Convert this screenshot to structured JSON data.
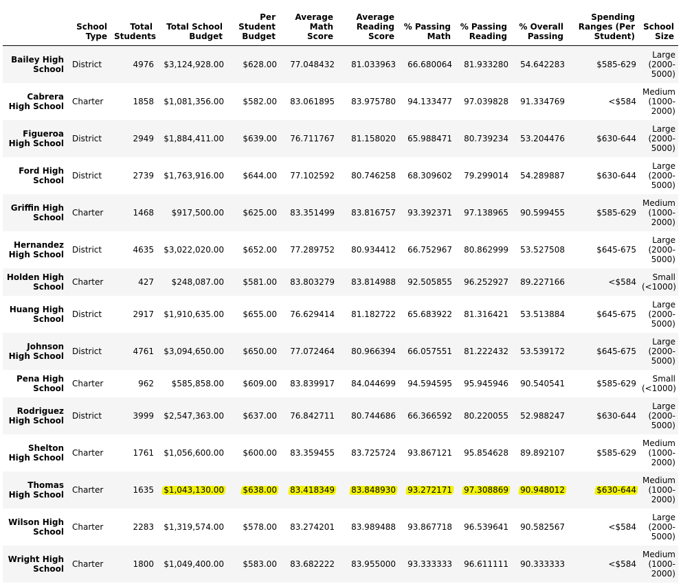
{
  "headers": [
    "",
    "School Type",
    "Total Students",
    "Total School Budget",
    "Per Student Budget",
    "Average Math Score",
    "Average Reading Score",
    "% Passing Math",
    "% Passing Reading",
    "% Overall Passing",
    "Spending Ranges (Per Student)",
    "School Size"
  ],
  "highlight_color": "#f2f20d",
  "rows": [
    {
      "name": "Bailey High School",
      "type": "District",
      "students": "4976",
      "budget": "$3,124,928.00",
      "per_student": "$628.00",
      "math": "77.048432",
      "reading": "81.033963",
      "pass_math": "66.680064",
      "pass_reading": "81.933280",
      "overall": "54.642283",
      "spending": "$585-629",
      "size": "Large (2000-5000)"
    },
    {
      "name": "Cabrera High School",
      "type": "Charter",
      "students": "1858",
      "budget": "$1,081,356.00",
      "per_student": "$582.00",
      "math": "83.061895",
      "reading": "83.975780",
      "pass_math": "94.133477",
      "pass_reading": "97.039828",
      "overall": "91.334769",
      "spending": "<$584",
      "size": "Medium (1000-2000)"
    },
    {
      "name": "Figueroa High School",
      "type": "District",
      "students": "2949",
      "budget": "$1,884,411.00",
      "per_student": "$639.00",
      "math": "76.711767",
      "reading": "81.158020",
      "pass_math": "65.988471",
      "pass_reading": "80.739234",
      "overall": "53.204476",
      "spending": "$630-644",
      "size": "Large (2000-5000)"
    },
    {
      "name": "Ford High School",
      "type": "District",
      "students": "2739",
      "budget": "$1,763,916.00",
      "per_student": "$644.00",
      "math": "77.102592",
      "reading": "80.746258",
      "pass_math": "68.309602",
      "pass_reading": "79.299014",
      "overall": "54.289887",
      "spending": "$630-644",
      "size": "Large (2000-5000)"
    },
    {
      "name": "Griffin High School",
      "type": "Charter",
      "students": "1468",
      "budget": "$917,500.00",
      "per_student": "$625.00",
      "math": "83.351499",
      "reading": "83.816757",
      "pass_math": "93.392371",
      "pass_reading": "97.138965",
      "overall": "90.599455",
      "spending": "$585-629",
      "size": "Medium (1000-2000)"
    },
    {
      "name": "Hernandez High School",
      "type": "District",
      "students": "4635",
      "budget": "$3,022,020.00",
      "per_student": "$652.00",
      "math": "77.289752",
      "reading": "80.934412",
      "pass_math": "66.752967",
      "pass_reading": "80.862999",
      "overall": "53.527508",
      "spending": "$645-675",
      "size": "Large (2000-5000)"
    },
    {
      "name": "Holden High School",
      "type": "Charter",
      "students": "427",
      "budget": "$248,087.00",
      "per_student": "$581.00",
      "math": "83.803279",
      "reading": "83.814988",
      "pass_math": "92.505855",
      "pass_reading": "96.252927",
      "overall": "89.227166",
      "spending": "<$584",
      "size": "Small (<1000)"
    },
    {
      "name": "Huang High School",
      "type": "District",
      "students": "2917",
      "budget": "$1,910,635.00",
      "per_student": "$655.00",
      "math": "76.629414",
      "reading": "81.182722",
      "pass_math": "65.683922",
      "pass_reading": "81.316421",
      "overall": "53.513884",
      "spending": "$645-675",
      "size": "Large (2000-5000)"
    },
    {
      "name": "Johnson High School",
      "type": "District",
      "students": "4761",
      "budget": "$3,094,650.00",
      "per_student": "$650.00",
      "math": "77.072464",
      "reading": "80.966394",
      "pass_math": "66.057551",
      "pass_reading": "81.222432",
      "overall": "53.539172",
      "spending": "$645-675",
      "size": "Large (2000-5000)"
    },
    {
      "name": "Pena High School",
      "type": "Charter",
      "students": "962",
      "budget": "$585,858.00",
      "per_student": "$609.00",
      "math": "83.839917",
      "reading": "84.044699",
      "pass_math": "94.594595",
      "pass_reading": "95.945946",
      "overall": "90.540541",
      "spending": "$585-629",
      "size": "Small (<1000)"
    },
    {
      "name": "Rodriguez High School",
      "type": "District",
      "students": "3999",
      "budget": "$2,547,363.00",
      "per_student": "$637.00",
      "math": "76.842711",
      "reading": "80.744686",
      "pass_math": "66.366592",
      "pass_reading": "80.220055",
      "overall": "52.988247",
      "spending": "$630-644",
      "size": "Large (2000-5000)"
    },
    {
      "name": "Shelton High School",
      "type": "Charter",
      "students": "1761",
      "budget": "$1,056,600.00",
      "per_student": "$600.00",
      "math": "83.359455",
      "reading": "83.725724",
      "pass_math": "93.867121",
      "pass_reading": "95.854628",
      "overall": "89.892107",
      "spending": "$585-629",
      "size": "Medium (1000-2000)"
    },
    {
      "name": "Thomas High School",
      "type": "Charter",
      "students": "1635",
      "budget": "$1,043,130.00",
      "per_student": "$638.00",
      "math": "83.418349",
      "reading": "83.848930",
      "pass_math": "93.272171",
      "pass_reading": "97.308869",
      "overall": "90.948012",
      "spending": "$630-644",
      "size": "Medium (1000-2000)"
    },
    {
      "name": "Wilson High School",
      "type": "Charter",
      "students": "2283",
      "budget": "$1,319,574.00",
      "per_student": "$578.00",
      "math": "83.274201",
      "reading": "83.989488",
      "pass_math": "93.867718",
      "pass_reading": "96.539641",
      "overall": "90.582567",
      "spending": "<$584",
      "size": "Large (2000-5000)"
    },
    {
      "name": "Wright High School",
      "type": "Charter",
      "students": "1800",
      "budget": "$1,049,400.00",
      "per_student": "$583.00",
      "math": "83.682222",
      "reading": "83.955000",
      "pass_math": "93.333333",
      "pass_reading": "96.611111",
      "overall": "90.333333",
      "spending": "<$584",
      "size": "Medium (1000-2000)"
    }
  ]
}
